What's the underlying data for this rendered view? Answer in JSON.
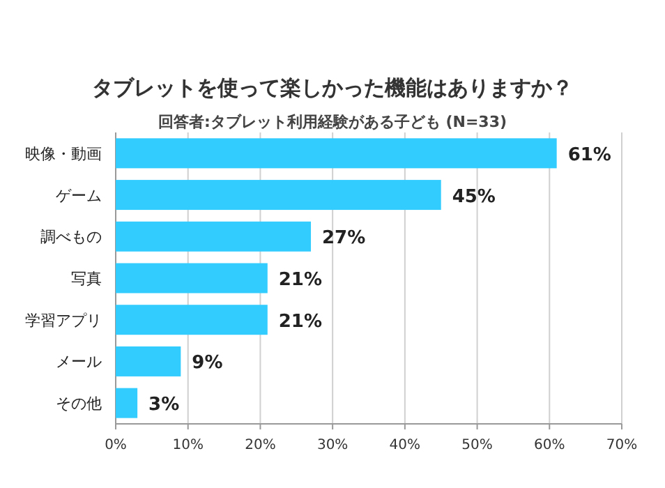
{
  "chart_data": {
    "type": "bar",
    "orientation": "horizontal",
    "title": "タブレットを使って楽しかった機能はありますか？",
    "subtitle": "回答者:タブレット利用経験がある子ども (N=33)",
    "categories": [
      "映像・動画",
      "ゲーム",
      "調べもの",
      "写真",
      "学習アプリ",
      "メール",
      "その他"
    ],
    "values": [
      61,
      45,
      27,
      21,
      21,
      9,
      3
    ],
    "value_labels": [
      "61%",
      "45%",
      "27%",
      "21%",
      "21%",
      "9%",
      "3%"
    ],
    "color": "#33ccff",
    "xlim": [
      0,
      70
    ],
    "xticks": [
      {
        "value": 0,
        "label": "0%"
      },
      {
        "value": 10,
        "label": "10%"
      },
      {
        "value": 20,
        "label": "20%"
      },
      {
        "value": 30,
        "label": "30%"
      },
      {
        "value": 40,
        "label": "40%"
      },
      {
        "value": 50,
        "label": "50%"
      },
      {
        "value": 60,
        "label": "60%"
      },
      {
        "value": 70,
        "label": "70%"
      }
    ],
    "grid": "x"
  }
}
